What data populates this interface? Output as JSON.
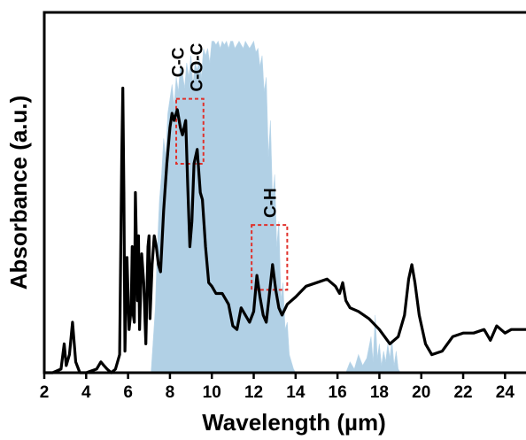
{
  "chart_data": {
    "type": "line",
    "title": "",
    "xlabel": "Wavelength (µm)",
    "ylabel": "Absorbance (a.u.)",
    "xlim": [
      2,
      25
    ],
    "ylim": [
      0,
      1
    ],
    "y_ticks_shown": false,
    "x_ticks": [
      "2",
      "4",
      "6",
      "8",
      "10",
      "12",
      "14",
      "16",
      "18",
      "20",
      "22",
      "24"
    ],
    "grid": false,
    "colors": {
      "absorbance": "#000000",
      "atmospheric_window": "#9ec4df",
      "highlight_box": "#e0302a"
    },
    "annotations": [
      {
        "text": "C-C",
        "x": 8.4
      },
      {
        "text": "C-O-C",
        "x": 9.3
      },
      {
        "text": "C-H",
        "x": 12.8
      }
    ],
    "highlight_boxes": [
      {
        "x_range": [
          8.3,
          9.6
        ],
        "y_range": [
          0.58,
          0.76
        ]
      },
      {
        "x_range": [
          11.9,
          13.6
        ],
        "y_range": [
          0.23,
          0.41
        ]
      }
    ],
    "series": [
      {
        "role": "absorbance",
        "x": [
          2.0,
          2.4,
          2.8,
          2.95,
          3.05,
          3.2,
          3.35,
          3.5,
          3.7,
          4.0,
          4.5,
          4.7,
          4.85,
          5.0,
          5.2,
          5.4,
          5.6,
          5.7,
          5.75,
          5.8,
          5.85,
          5.95,
          6.05,
          6.15,
          6.2,
          6.25,
          6.3,
          6.35,
          6.45,
          6.5,
          6.55,
          6.65,
          6.75,
          6.85,
          6.95,
          7.0,
          7.05,
          7.15,
          7.25,
          7.35,
          7.45,
          7.55,
          7.7,
          7.85,
          8.0,
          8.1,
          8.2,
          8.35,
          8.5,
          8.6,
          8.75,
          8.85,
          8.95,
          9.05,
          9.15,
          9.3,
          9.45,
          9.55,
          9.7,
          9.85,
          10.0,
          10.2,
          10.5,
          10.8,
          11.0,
          11.2,
          11.4,
          11.6,
          11.8,
          12.0,
          12.15,
          12.3,
          12.45,
          12.6,
          12.75,
          12.9,
          13.05,
          13.2,
          13.35,
          13.6,
          14.0,
          14.5,
          15.0,
          15.5,
          15.9,
          16.1,
          16.25,
          16.4,
          16.6,
          17.0,
          17.5,
          18.0,
          18.5,
          18.9,
          19.2,
          19.4,
          19.55,
          19.7,
          19.9,
          20.2,
          20.5,
          21.0,
          21.5,
          22.0,
          22.5,
          23.0,
          23.3,
          23.6,
          24.0,
          24.3,
          24.6,
          25.0
        ],
        "y": [
          0.0,
          0.0,
          0.01,
          0.08,
          0.02,
          0.05,
          0.14,
          0.03,
          0.0,
          0.0,
          0.01,
          0.03,
          0.02,
          0.01,
          0.0,
          0.01,
          0.05,
          0.6,
          0.79,
          0.5,
          0.06,
          0.32,
          0.12,
          0.18,
          0.35,
          0.16,
          0.14,
          0.5,
          0.2,
          0.38,
          0.12,
          0.33,
          0.25,
          0.08,
          0.35,
          0.38,
          0.15,
          0.3,
          0.38,
          0.35,
          0.3,
          0.28,
          0.45,
          0.58,
          0.68,
          0.72,
          0.7,
          0.73,
          0.68,
          0.66,
          0.7,
          0.52,
          0.35,
          0.42,
          0.58,
          0.62,
          0.5,
          0.48,
          0.35,
          0.25,
          0.24,
          0.22,
          0.22,
          0.19,
          0.13,
          0.12,
          0.18,
          0.16,
          0.14,
          0.17,
          0.27,
          0.21,
          0.16,
          0.14,
          0.22,
          0.3,
          0.23,
          0.18,
          0.16,
          0.19,
          0.21,
          0.24,
          0.25,
          0.26,
          0.24,
          0.22,
          0.25,
          0.2,
          0.18,
          0.17,
          0.15,
          0.12,
          0.08,
          0.1,
          0.16,
          0.26,
          0.3,
          0.25,
          0.16,
          0.08,
          0.05,
          0.06,
          0.1,
          0.11,
          0.11,
          0.12,
          0.09,
          0.13,
          0.11,
          0.12,
          0.12,
          0.12
        ]
      },
      {
        "role": "atmospheric_window",
        "x": [
          7.1,
          7.3,
          7.4,
          7.5,
          7.6,
          7.7,
          7.8,
          7.9,
          8.0,
          8.1,
          8.2,
          8.3,
          8.4,
          8.5,
          8.6,
          8.7,
          8.8,
          8.9,
          9.0,
          9.1,
          9.2,
          9.3,
          9.4,
          9.5,
          9.6,
          9.7,
          9.8,
          9.9,
          10.0,
          10.1,
          10.2,
          10.3,
          10.4,
          10.5,
          10.6,
          10.7,
          10.8,
          10.9,
          11.0,
          11.1,
          11.2,
          11.3,
          11.4,
          11.5,
          11.6,
          11.7,
          11.8,
          11.9,
          12.0,
          12.1,
          12.2,
          12.3,
          12.4,
          12.5,
          12.6,
          12.7,
          12.8,
          12.9,
          13.0,
          13.1,
          13.2,
          13.3,
          13.4,
          13.5,
          13.6,
          13.7,
          13.8,
          13.9,
          14.0,
          16.4,
          16.6,
          16.8,
          17.0,
          17.2,
          17.4,
          17.6,
          17.7,
          17.8,
          17.9,
          18.0,
          18.1,
          18.2,
          18.3,
          18.4,
          18.5,
          18.6,
          18.7,
          18.8,
          18.9,
          19.0
        ],
        "y": [
          0.0,
          0.18,
          0.35,
          0.48,
          0.55,
          0.65,
          0.6,
          0.72,
          0.76,
          0.8,
          0.74,
          0.82,
          0.78,
          0.85,
          0.83,
          0.79,
          0.86,
          0.82,
          0.88,
          0.8,
          0.86,
          0.84,
          0.87,
          0.82,
          0.9,
          0.88,
          0.9,
          0.86,
          0.92,
          0.92,
          0.91,
          0.92,
          0.9,
          0.92,
          0.91,
          0.92,
          0.9,
          0.92,
          0.92,
          0.9,
          0.91,
          0.92,
          0.91,
          0.9,
          0.92,
          0.91,
          0.9,
          0.91,
          0.92,
          0.89,
          0.9,
          0.85,
          0.88,
          0.78,
          0.82,
          0.6,
          0.7,
          0.48,
          0.55,
          0.35,
          0.42,
          0.2,
          0.25,
          0.12,
          0.14,
          0.05,
          0.03,
          0.01,
          0.0,
          0.0,
          0.03,
          0.01,
          0.05,
          0.02,
          0.04,
          0.1,
          0.03,
          0.16,
          0.04,
          0.08,
          0.02,
          0.06,
          0.03,
          0.08,
          0.04,
          0.09,
          0.02,
          0.06,
          0.01,
          0.0
        ]
      }
    ]
  }
}
